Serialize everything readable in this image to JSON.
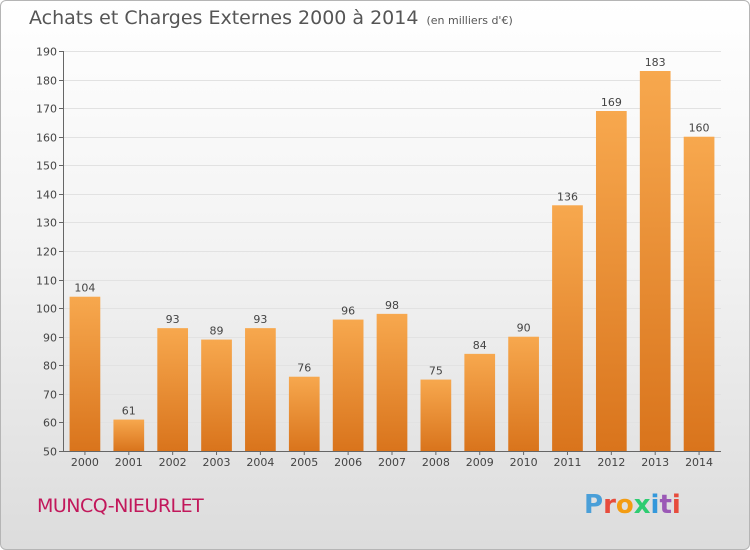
{
  "header": {
    "title": "Achats et Charges Externes 2000 à 2014",
    "subtitle": "(en milliers d'€)"
  },
  "footer": {
    "town": "MUNCQ-NIEURLET",
    "logo_text": "Proxiti"
  },
  "colors": {
    "bar_light": "#f7a84e",
    "bar_dark": "#d9741c",
    "town": "#c2185b",
    "logo_letters": [
      "#4a9fd8",
      "#e74c3c",
      "#f39c12",
      "#2ecc71",
      "#3498db",
      "#9b59b6",
      "#e74c3c"
    ]
  },
  "chart_data": {
    "type": "bar",
    "title": "Achats et Charges Externes 2000 à 2014",
    "subtitle": "(en milliers d'€)",
    "categories": [
      "2000",
      "2001",
      "2002",
      "2003",
      "2004",
      "2005",
      "2006",
      "2007",
      "2008",
      "2009",
      "2010",
      "2011",
      "2012",
      "2013",
      "2014"
    ],
    "values": [
      104,
      61,
      93,
      89,
      93,
      76,
      96,
      98,
      75,
      84,
      90,
      136,
      169,
      183,
      160
    ],
    "xlabel": "",
    "ylabel": "",
    "ylim": [
      50,
      190
    ],
    "yticks": [
      50,
      60,
      70,
      80,
      90,
      100,
      110,
      120,
      130,
      140,
      150,
      160,
      170,
      180,
      190
    ],
    "grid": true,
    "legend": "none"
  }
}
